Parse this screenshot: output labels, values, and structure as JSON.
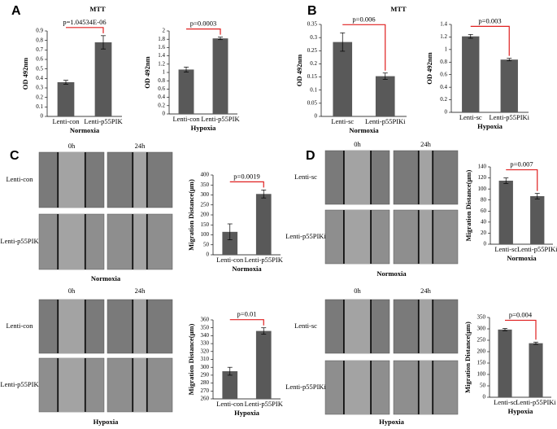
{
  "panels": [
    {
      "letter": "A",
      "title": "MTT"
    },
    {
      "letter": "B",
      "title": "MTT"
    },
    {
      "letter": "C"
    },
    {
      "letter": "D"
    }
  ],
  "wound_images": [
    {
      "times": [
        "0h",
        "24h"
      ],
      "rows": [
        "Lenti-con",
        "Lenti-p55PIK"
      ],
      "condition": "Normoxia"
    },
    {
      "times": [
        "0h",
        "24h"
      ],
      "rows": [
        "Lenti-con",
        "Lenti-p55PIK"
      ],
      "condition": "Hypoxia"
    },
    {
      "times": [
        "0h",
        "24h"
      ],
      "rows": [
        "Lenti-sc",
        "Lenti-p55PIKi"
      ],
      "condition": "Normoxia"
    },
    {
      "times": [
        "0h",
        "24h"
      ],
      "rows": [
        "Lenti-sc",
        "Lenti-p55PIKi"
      ],
      "condition": "Hypoxia"
    }
  ],
  "chart_data": [
    {
      "type": "bar",
      "ylabel": "OD 492nm",
      "xlabel": "Normoxia",
      "annotation": "p=1.04534E-06",
      "categories": [
        "Lenti-con",
        "Lenti-p55PIK"
      ],
      "values": [
        0.36,
        0.78
      ],
      "errors": [
        0.02,
        0.07
      ],
      "color": "#595959",
      "ylim": [
        0,
        0.9
      ],
      "yticks": [
        0,
        0.1,
        0.2,
        0.3,
        0.4,
        0.5,
        0.6,
        0.7,
        0.8,
        0.9
      ]
    },
    {
      "type": "bar",
      "ylabel": "OD 492nm",
      "xlabel": "Hypoxia",
      "annotation": "p=0.0003",
      "categories": [
        "Lenti-con",
        "Lenti-p55PIK"
      ],
      "values": [
        1.07,
        1.82
      ],
      "errors": [
        0.06,
        0.03
      ],
      "color": "#595959",
      "ylim": [
        0,
        2
      ],
      "yticks": [
        0,
        0.2,
        0.4,
        0.6,
        0.8,
        1,
        1.2,
        1.4,
        1.6,
        1.8,
        2
      ]
    },
    {
      "type": "bar",
      "ylabel": "OD 492nm",
      "xlabel": "Normoxia",
      "annotation": "p=0.006",
      "categories": [
        "Lenti-sc",
        "Lenti-p55PIKi"
      ],
      "values": [
        0.283,
        0.153
      ],
      "errors": [
        0.035,
        0.012
      ],
      "color": "#595959",
      "ylim": [
        0,
        0.35
      ],
      "yticks": [
        0,
        0.05,
        0.1,
        0.15,
        0.2,
        0.25,
        0.3,
        0.35
      ]
    },
    {
      "type": "bar",
      "ylabel": "OD 492nm",
      "xlabel": "Hypoxia",
      "annotation": "p=0.003",
      "categories": [
        "Lenti-sc",
        "Lenti-p55PIKi"
      ],
      "values": [
        1.21,
        0.84
      ],
      "errors": [
        0.03,
        0.02
      ],
      "color": "#595959",
      "ylim": [
        0,
        1.4
      ],
      "yticks": [
        0,
        0.2,
        0.4,
        0.6,
        0.8,
        1,
        1.2,
        1.4
      ]
    },
    {
      "type": "bar",
      "ylabel": "Migration Distance(μm)",
      "xlabel": "Normoxia",
      "annotation": "p=0.0019",
      "categories": [
        "Lenti-con",
        "Lenti-p55PIK"
      ],
      "values": [
        115,
        305
      ],
      "errors": [
        40,
        20
      ],
      "color": "#595959",
      "ylim": [
        0,
        400
      ],
      "yticks": [
        0,
        50,
        100,
        150,
        200,
        250,
        300,
        350,
        400
      ]
    },
    {
      "type": "bar",
      "ylabel": "Migration Distance(μm)",
      "xlabel": "Hypoxia",
      "annotation": "p=0.01",
      "categories": [
        "Lenti-con",
        "Lenti-p55PIK"
      ],
      "values": [
        295,
        346
      ],
      "errors": [
        5,
        4
      ],
      "color": "#595959",
      "ylim": [
        260,
        360
      ],
      "yticks": [
        260,
        270,
        280,
        290,
        300,
        310,
        320,
        330,
        340,
        350,
        360
      ]
    },
    {
      "type": "bar",
      "ylabel": "Migration Distance(μm)",
      "xlabel": "Normoxia",
      "annotation": "p=0.007",
      "categories": [
        "Lenti-sc",
        "Lenti-p55PIKi"
      ],
      "values": [
        115,
        87
      ],
      "errors": [
        5,
        5
      ],
      "color": "#595959",
      "ylim": [
        0,
        140
      ],
      "yticks": [
        0,
        20,
        40,
        60,
        80,
        100,
        120,
        140
      ]
    },
    {
      "type": "bar",
      "ylabel": "Migration Distance(μm)",
      "xlabel": "Hypoxia",
      "annotation": "p=0.004",
      "categories": [
        "Lenti-sc",
        "Lenti-p55PIKi"
      ],
      "values": [
        297,
        237
      ],
      "errors": [
        5,
        5
      ],
      "color": "#595959",
      "ylim": [
        0,
        350
      ],
      "yticks": [
        0,
        50,
        100,
        150,
        200,
        250,
        300,
        350
      ]
    }
  ]
}
